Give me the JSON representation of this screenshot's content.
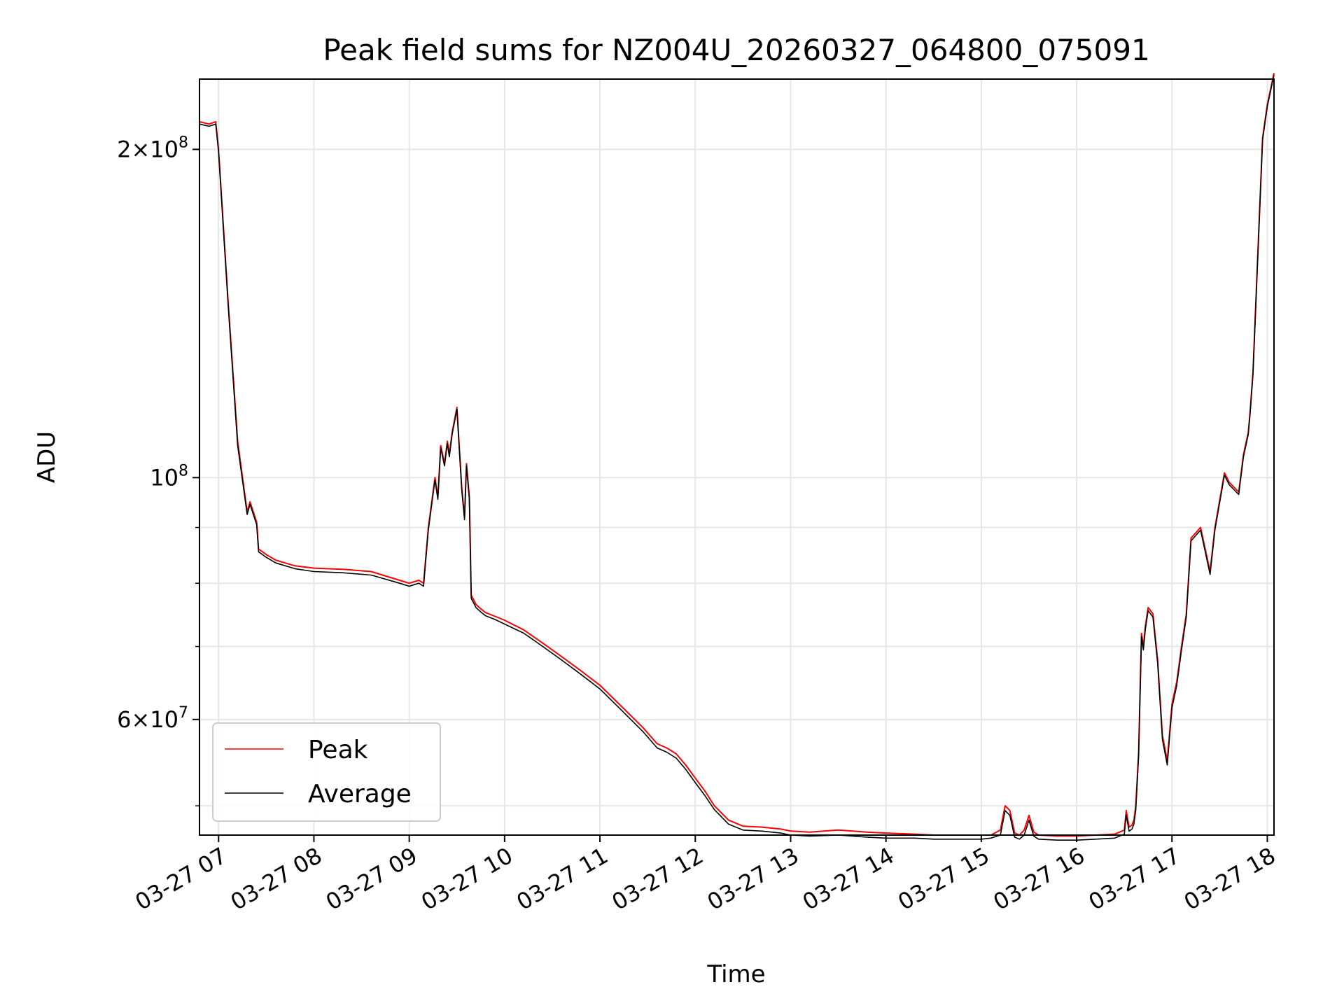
{
  "chart_data": {
    "type": "line",
    "title": "Peak field sums for NZ004U_20260327_064800_075091",
    "xlabel": "Time",
    "ylabel": "ADU",
    "x_unit": "hours since 03-27 00:00",
    "xlim": [
      6.8,
      18.07
    ],
    "ylim": [
      47000000,
      232000000
    ],
    "yscale": "log",
    "grid": true,
    "legend_position": "bottom-left",
    "x_ticks": [
      {
        "value": 7,
        "label": "03-27 07"
      },
      {
        "value": 8,
        "label": "03-27 08"
      },
      {
        "value": 9,
        "label": "03-27 09"
      },
      {
        "value": 10,
        "label": "03-27 10"
      },
      {
        "value": 11,
        "label": "03-27 11"
      },
      {
        "value": 12,
        "label": "03-27 12"
      },
      {
        "value": 13,
        "label": "03-27 13"
      },
      {
        "value": 14,
        "label": "03-27 14"
      },
      {
        "value": 15,
        "label": "03-27 15"
      },
      {
        "value": 16,
        "label": "03-27 16"
      },
      {
        "value": 17,
        "label": "03-27 17"
      },
      {
        "value": 18,
        "label": "03-27 18"
      }
    ],
    "y_major_ticks": [
      {
        "value": 100000000,
        "mantissa": "",
        "base": "10",
        "exp": "8"
      },
      {
        "value": 200000000,
        "mantissa": "2×",
        "base": "10",
        "exp": "8"
      },
      {
        "value": 60000000,
        "mantissa": "6×",
        "base": "10",
        "exp": "7"
      }
    ],
    "y_minor_ticks": [
      50000000,
      70000000,
      80000000,
      90000000
    ],
    "series": [
      {
        "name": "Peak",
        "color": "#ff0000",
        "x": [
          6.8,
          6.9,
          6.97,
          7.0,
          7.1,
          7.2,
          7.3,
          7.33,
          7.4,
          7.42,
          7.5,
          7.6,
          7.8,
          8.0,
          8.3,
          8.6,
          8.9,
          9.0,
          9.1,
          9.15,
          9.2,
          9.27,
          9.3,
          9.33,
          9.37,
          9.4,
          9.42,
          9.45,
          9.5,
          9.53,
          9.55,
          9.58,
          9.6,
          9.63,
          9.65,
          9.7,
          9.75,
          9.8,
          9.9,
          10.0,
          10.2,
          10.4,
          10.6,
          10.8,
          11.0,
          11.2,
          11.45,
          11.6,
          11.7,
          11.8,
          11.9,
          12.0,
          12.1,
          12.2,
          12.35,
          12.5,
          12.7,
          12.9,
          13.0,
          13.2,
          13.5,
          13.8,
          14.0,
          14.3,
          14.5,
          14.8,
          15.0,
          15.1,
          15.2,
          15.25,
          15.3,
          15.35,
          15.4,
          15.45,
          15.5,
          15.55,
          15.6,
          15.8,
          16.0,
          16.2,
          16.4,
          16.5,
          16.52,
          16.55,
          16.58,
          16.6,
          16.62,
          16.65,
          16.68,
          16.7,
          16.72,
          16.75,
          16.8,
          16.85,
          16.9,
          16.95,
          17.0,
          17.05,
          17.1,
          17.15,
          17.2,
          17.3,
          17.4,
          17.45,
          17.55,
          17.6,
          17.7,
          17.75,
          17.8,
          17.82,
          17.85,
          17.9,
          17.95,
          18.0,
          18.07
        ],
        "values": [
          212000000,
          211000000,
          212000000,
          200000000,
          145000000,
          108000000,
          93000000,
          95000000,
          91000000,
          86000000,
          85000000,
          84000000,
          83000000,
          82600000,
          82400000,
          82000000,
          80500000,
          80000000,
          80500000,
          80000000,
          90000000,
          100000000,
          96000000,
          107000000,
          103000000,
          108000000,
          105000000,
          110000000,
          116000000,
          105000000,
          98000000,
          92000000,
          103000000,
          96000000,
          78000000,
          76500000,
          75800000,
          75200000,
          74600000,
          74000000,
          72500000,
          70500000,
          68500000,
          66500000,
          64500000,
          62000000,
          59000000,
          57000000,
          56500000,
          55800000,
          54500000,
          53000000,
          51600000,
          50000000,
          48500000,
          47900000,
          47800000,
          47600000,
          47400000,
          47300000,
          47500000,
          47300000,
          47200000,
          47100000,
          47000000,
          47000000,
          47000000,
          47000000,
          47500000,
          50000000,
          49500000,
          47200000,
          47000000,
          47500000,
          49000000,
          47300000,
          47000000,
          46900000,
          46900000,
          47000000,
          47100000,
          47500000,
          49500000,
          47800000,
          48000000,
          48500000,
          50000000,
          56000000,
          72000000,
          70000000,
          73000000,
          76000000,
          75000000,
          68000000,
          58000000,
          55000000,
          62000000,
          65000000,
          70000000,
          75000000,
          88000000,
          90000000,
          82000000,
          90000000,
          101000000,
          99000000,
          97000000,
          105000000,
          110000000,
          115000000,
          125000000,
          160000000,
          205000000,
          220000000,
          235000000
        ]
      },
      {
        "name": "Average",
        "color": "#000000",
        "x": [
          6.8,
          6.9,
          6.97,
          7.0,
          7.1,
          7.2,
          7.3,
          7.33,
          7.4,
          7.42,
          7.5,
          7.6,
          7.8,
          8.0,
          8.3,
          8.6,
          8.9,
          9.0,
          9.1,
          9.15,
          9.2,
          9.27,
          9.3,
          9.33,
          9.37,
          9.4,
          9.42,
          9.45,
          9.5,
          9.53,
          9.55,
          9.58,
          9.6,
          9.63,
          9.65,
          9.7,
          9.75,
          9.8,
          9.9,
          10.0,
          10.2,
          10.4,
          10.6,
          10.8,
          11.0,
          11.2,
          11.45,
          11.6,
          11.7,
          11.8,
          11.9,
          12.0,
          12.1,
          12.2,
          12.35,
          12.5,
          12.7,
          12.9,
          13.0,
          13.2,
          13.5,
          13.8,
          14.0,
          14.3,
          14.5,
          14.8,
          15.0,
          15.1,
          15.2,
          15.25,
          15.3,
          15.35,
          15.4,
          15.45,
          15.5,
          15.55,
          15.6,
          15.8,
          16.0,
          16.2,
          16.4,
          16.5,
          16.52,
          16.55,
          16.58,
          16.6,
          16.62,
          16.65,
          16.68,
          16.7,
          16.72,
          16.75,
          16.8,
          16.85,
          16.9,
          16.95,
          17.0,
          17.05,
          17.1,
          17.15,
          17.2,
          17.3,
          17.4,
          17.45,
          17.55,
          17.6,
          17.7,
          17.75,
          17.8,
          17.82,
          17.85,
          17.9,
          17.95,
          18.0,
          18.07
        ],
        "values": [
          211000000,
          210000000,
          211000000,
          199000000,
          144000000,
          107000000,
          92500000,
          94500000,
          90500000,
          85500000,
          84500000,
          83500000,
          82500000,
          82000000,
          81800000,
          81400000,
          80000000,
          79500000,
          80000000,
          79500000,
          89500000,
          99500000,
          95500000,
          106500000,
          102500000,
          107500000,
          104500000,
          109500000,
          115500000,
          104500000,
          97500000,
          91500000,
          102500000,
          95500000,
          77500000,
          76000000,
          75300000,
          74700000,
          74100000,
          73400000,
          72000000,
          70000000,
          68000000,
          66000000,
          64000000,
          61500000,
          58500000,
          56500000,
          56000000,
          55300000,
          54000000,
          52500000,
          51100000,
          49600000,
          48100000,
          47500000,
          47400000,
          47200000,
          47000000,
          46900000,
          47000000,
          46800000,
          46700000,
          46700000,
          46600000,
          46600000,
          46600000,
          46700000,
          47000000,
          49500000,
          49000000,
          46800000,
          46600000,
          47000000,
          48500000,
          46900000,
          46600000,
          46500000,
          46500000,
          46600000,
          46700000,
          47100000,
          49000000,
          47400000,
          47600000,
          48100000,
          49500000,
          55500000,
          71500000,
          69500000,
          72500000,
          75500000,
          74500000,
          67500000,
          57500000,
          54500000,
          61500000,
          64500000,
          69500000,
          74500000,
          87500000,
          89500000,
          81500000,
          89500000,
          100500000,
          98500000,
          96500000,
          104500000,
          109500000,
          114500000,
          124500000,
          159000000,
          204000000,
          219000000,
          234000000
        ]
      }
    ]
  }
}
